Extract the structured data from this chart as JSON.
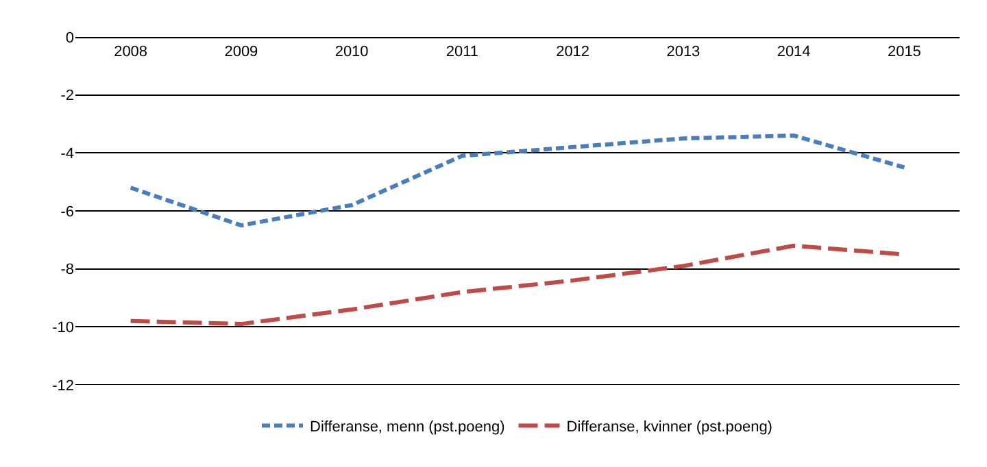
{
  "chart_data": {
    "type": "line",
    "categories": [
      "2008",
      "2009",
      "2010",
      "2011",
      "2012",
      "2013",
      "2014",
      "2015"
    ],
    "series": [
      {
        "name": "Differanse, menn (pst.poeng)",
        "color": "#4a7ebb",
        "line_style": "dotted",
        "values": [
          -5.2,
          -6.5,
          -5.8,
          -4.1,
          -3.8,
          -3.5,
          -3.4,
          -4.5
        ]
      },
      {
        "name": "Differanse, kvinner (pst.poeng)",
        "color": "#be4b48",
        "line_style": "dashed",
        "values": [
          -9.8,
          -9.9,
          -9.4,
          -8.8,
          -8.4,
          -7.9,
          -7.2,
          -7.5
        ]
      }
    ],
    "ylim": [
      -12,
      0
    ],
    "yticks": [
      0,
      -2,
      -4,
      -6,
      -8,
      -10,
      -12
    ],
    "grid": "y",
    "legend": "bottom",
    "marker": "none"
  }
}
